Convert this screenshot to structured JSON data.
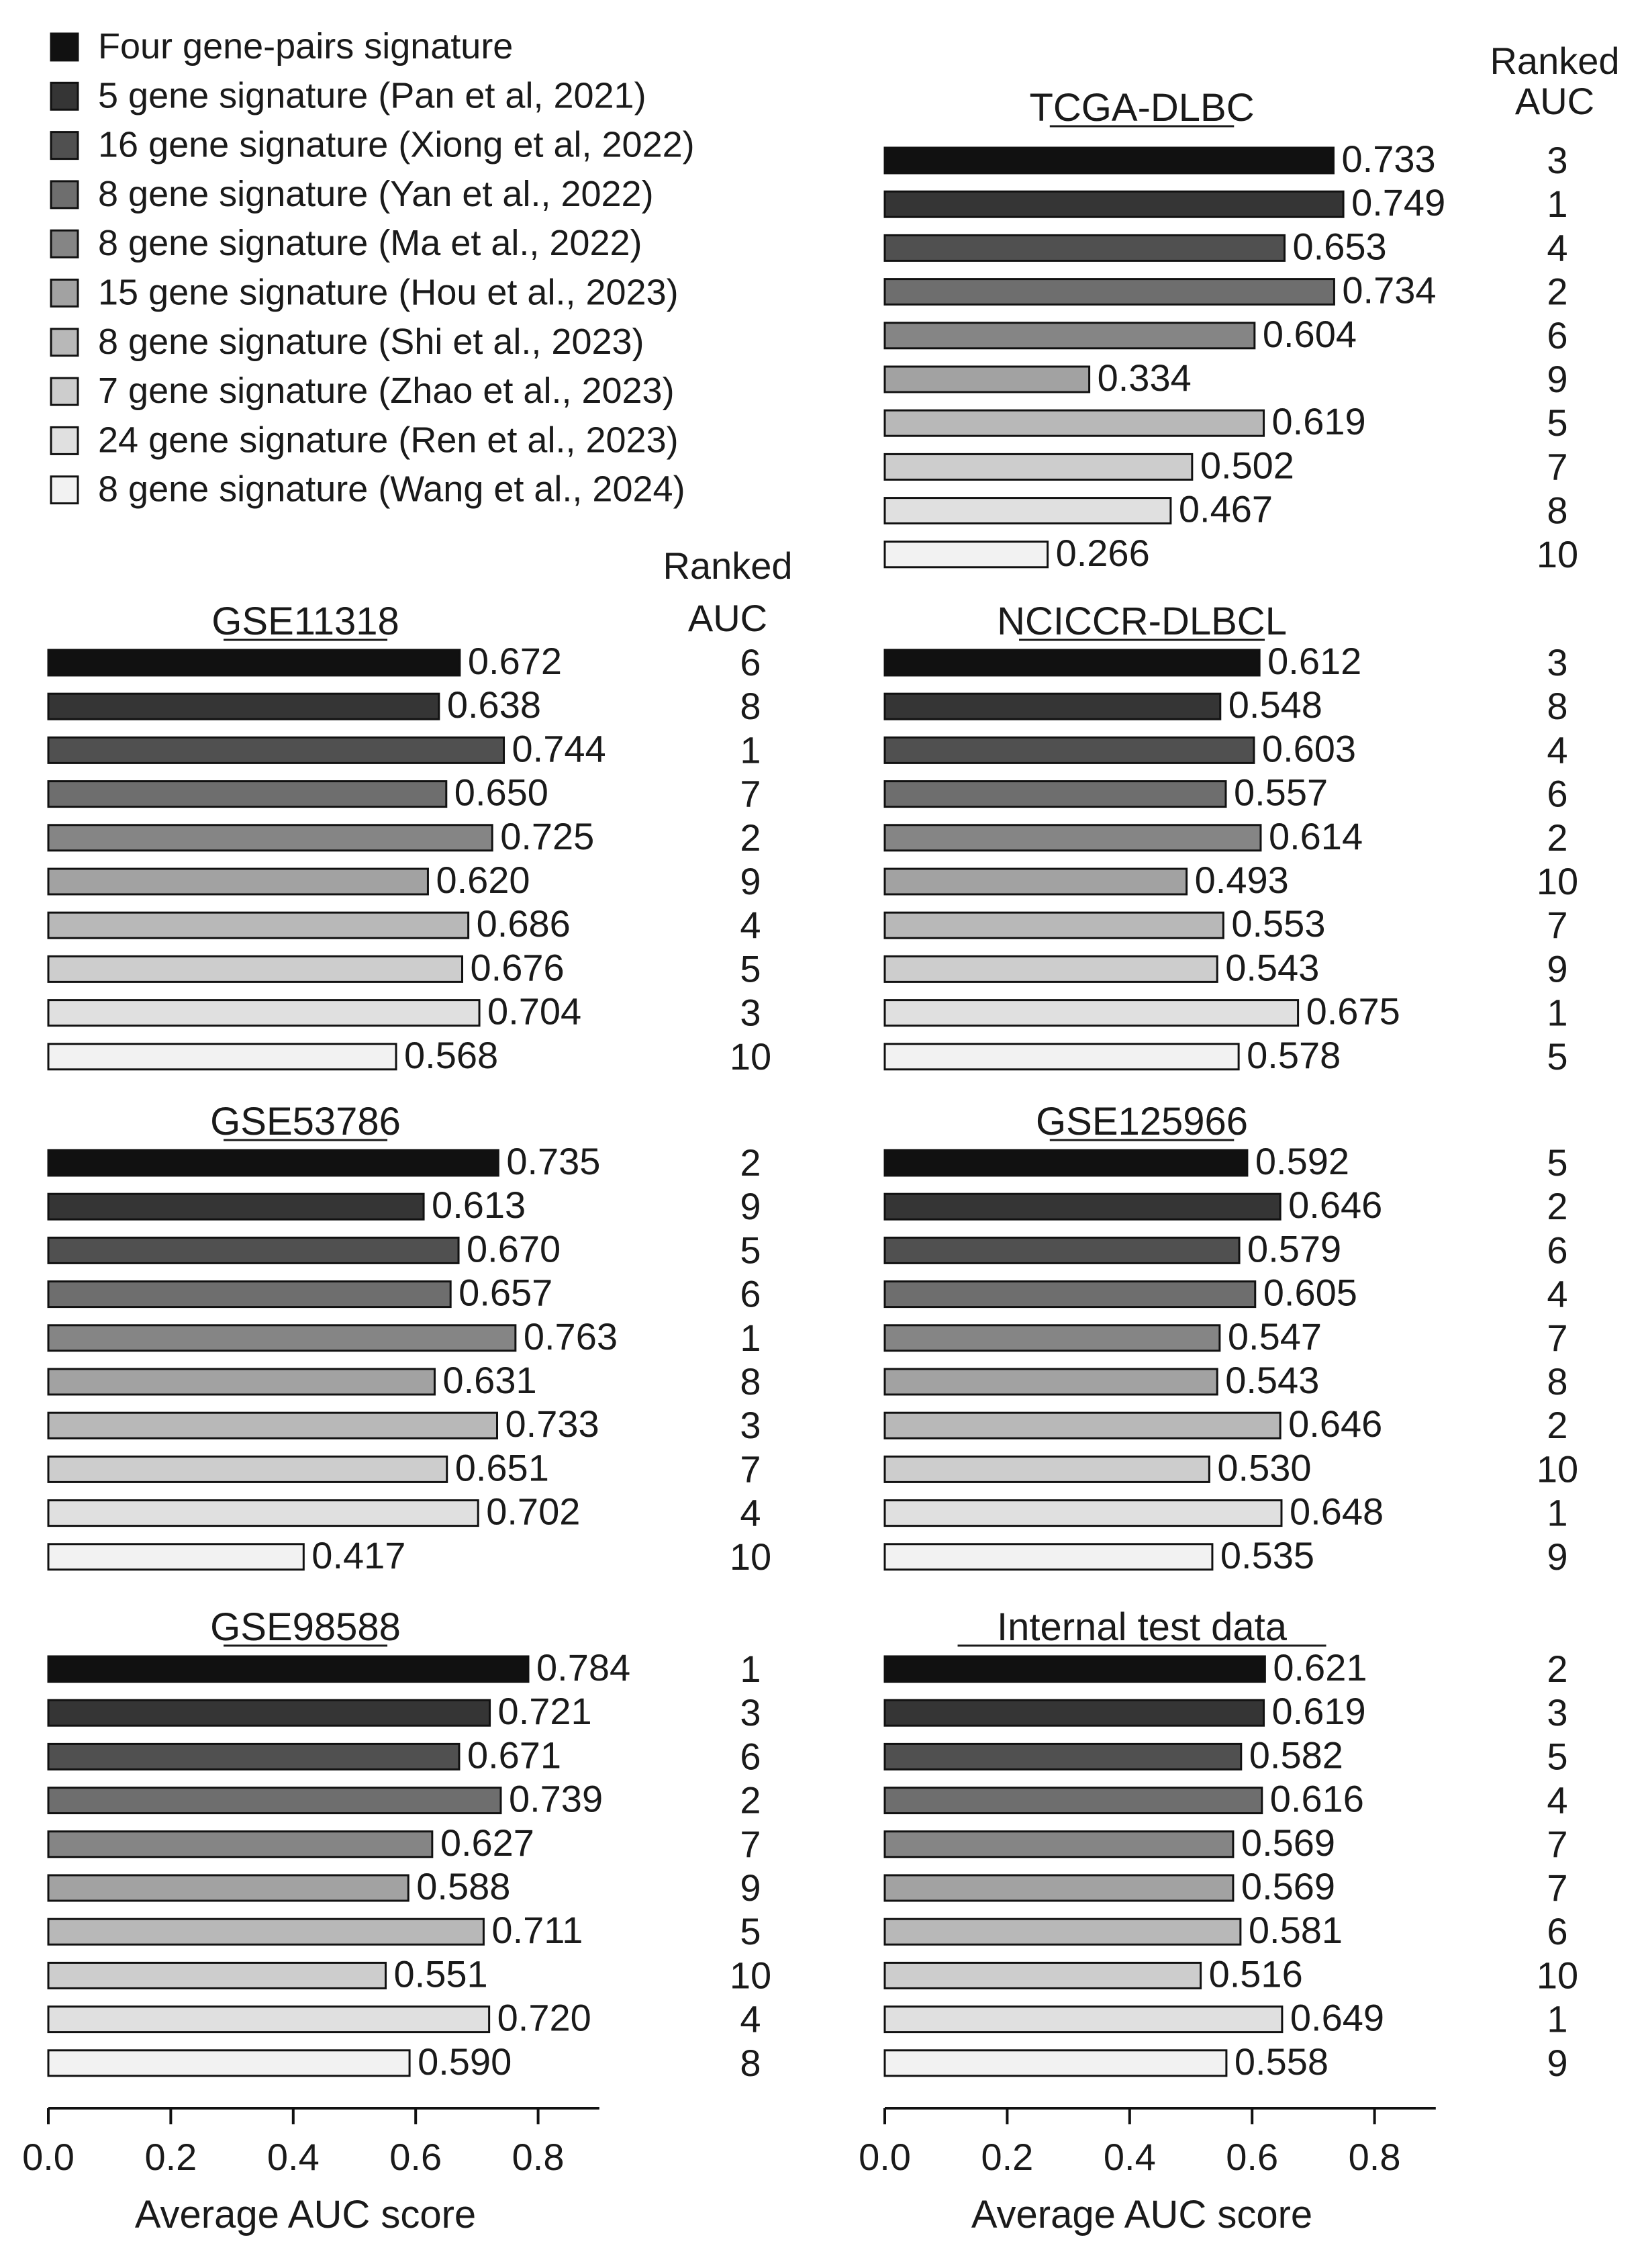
{
  "chart_data": {
    "type": "bar",
    "orientation": "horizontal",
    "xlabel": "Average AUC score",
    "xlim": [
      0,
      0.9
    ],
    "xticks": [
      "0.0",
      "0.2",
      "0.4",
      "0.6",
      "0.8"
    ],
    "rank_header": [
      "Ranked",
      "AUC"
    ],
    "legend": [
      {
        "label": "Four gene-pairs signature",
        "color": "#111111"
      },
      {
        "label": "5 gene signature (Pan et al, 2021)",
        "color": "#353535"
      },
      {
        "label": "16 gene signature (Xiong et al, 2022)",
        "color": "#505050"
      },
      {
        "label": "8 gene signature (Yan et al., 2022)",
        "color": "#6e6e6e"
      },
      {
        "label": "8 gene signature (Ma et al., 2022)",
        "color": "#858585"
      },
      {
        "label": "15 gene signature (Hou et al., 2023)",
        "color": "#a2a2a2"
      },
      {
        "label": "8 gene signature (Shi et al., 2023)",
        "color": "#b8b8b8"
      },
      {
        "label": "7 gene signature (Zhao et al., 2023)",
        "color": "#cdcdcd"
      },
      {
        "label": "24 gene signature (Ren et al., 2023)",
        "color": "#e0e0e0"
      },
      {
        "label": "8 gene signature (Wang et al., 2024)",
        "color": "#f2f2f2"
      }
    ],
    "panels": [
      {
        "title": "TCGA-DLBC",
        "values": [
          "0.733",
          "0.749",
          "0.653",
          "0.734",
          "0.604",
          "0.334",
          "0.619",
          "0.502",
          "0.467",
          "0.266"
        ],
        "ranks": [
          "3",
          "1",
          "4",
          "2",
          "6",
          "9",
          "5",
          "7",
          "8",
          "10"
        ]
      },
      {
        "title": "GSE11318",
        "values": [
          "0.672",
          "0.638",
          "0.744",
          "0.650",
          "0.725",
          "0.620",
          "0.686",
          "0.676",
          "0.704",
          "0.568"
        ],
        "ranks": [
          "6",
          "8",
          "1",
          "7",
          "2",
          "9",
          "4",
          "5",
          "3",
          "10"
        ]
      },
      {
        "title": "NCICCR-DLBCL",
        "values": [
          "0.612",
          "0.548",
          "0.603",
          "0.557",
          "0.614",
          "0.493",
          "0.553",
          "0.543",
          "0.675",
          "0.578"
        ],
        "ranks": [
          "3",
          "8",
          "4",
          "6",
          "2",
          "10",
          "7",
          "9",
          "1",
          "5"
        ]
      },
      {
        "title": "GSE53786",
        "values": [
          "0.735",
          "0.613",
          "0.670",
          "0.657",
          "0.763",
          "0.631",
          "0.733",
          "0.651",
          "0.702",
          "0.417"
        ],
        "ranks": [
          "2",
          "9",
          "5",
          "6",
          "1",
          "8",
          "3",
          "7",
          "4",
          "10"
        ]
      },
      {
        "title": "GSE125966",
        "values": [
          "0.592",
          "0.646",
          "0.579",
          "0.605",
          "0.547",
          "0.543",
          "0.646",
          "0.530",
          "0.648",
          "0.535"
        ],
        "ranks": [
          "5",
          "2",
          "6",
          "4",
          "7",
          "8",
          "2",
          "10",
          "1",
          "9"
        ]
      },
      {
        "title": "GSE98588",
        "values": [
          "0.784",
          "0.721",
          "0.671",
          "0.739",
          "0.627",
          "0.588",
          "0.711",
          "0.551",
          "0.720",
          "0.590"
        ],
        "ranks": [
          "1",
          "3",
          "6",
          "2",
          "7",
          "9",
          "5",
          "10",
          "4",
          "8"
        ]
      },
      {
        "title": "Internal test data",
        "values": [
          "0.621",
          "0.619",
          "0.582",
          "0.616",
          "0.569",
          "0.569",
          "0.581",
          "0.516",
          "0.649",
          "0.558"
        ],
        "ranks": [
          "2",
          "3",
          "5",
          "4",
          "7",
          "7",
          "6",
          "10",
          "1",
          "9"
        ]
      }
    ]
  }
}
